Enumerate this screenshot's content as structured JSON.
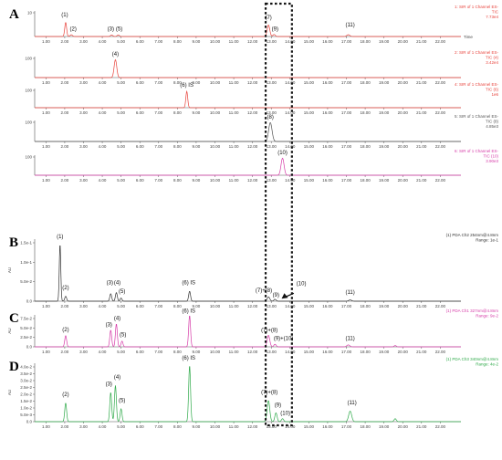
{
  "chart_data": {
    "type": "line",
    "x_axis": {
      "range": [
        0.4,
        23.1
      ],
      "tick_labels": [
        "1.00",
        "2.00",
        "3.00",
        "4.00",
        "5.00",
        "6.00",
        "7.00",
        "8.00",
        "9.00",
        "10.00",
        "11.00",
        "12.00",
        "13.00",
        "14.00",
        "15.00",
        "16.00",
        "17.00",
        "18.00",
        "19.00",
        "20.00",
        "21.00",
        "22.00"
      ],
      "suffix": "Time"
    },
    "highlight_window": [
      12.7,
      14.1
    ],
    "panels": [
      {
        "label": "A",
        "y_ticks": [
          "10"
        ],
        "ylabel": "",
        "color": "#e8433c",
        "info": [
          "1: SIR of 1 Channel ES-",
          "TIC",
          "7.73e4"
        ],
        "peaks": [
          {
            "rt": 2.05,
            "h": 0.55,
            "w": 0.05
          },
          {
            "rt": 2.35,
            "h": 0.07,
            "w": 0.06
          },
          {
            "rt": 4.5,
            "h": 0.06,
            "w": 0.06
          },
          {
            "rt": 4.85,
            "h": 0.06,
            "w": 0.06
          },
          {
            "rt": 12.85,
            "h": 0.45,
            "w": 0.07
          },
          {
            "rt": 13.15,
            "h": 0.08,
            "w": 0.06
          },
          {
            "rt": 17.1,
            "h": 0.07,
            "w": 0.08
          }
        ],
        "peak_labels": [
          {
            "text": "(1)",
            "rt": 2.0,
            "h": 0.75
          },
          {
            "text": "(2)",
            "rt": 2.45,
            "h": 0.2
          },
          {
            "text": "(3)",
            "rt": 4.45,
            "h": 0.2
          },
          {
            "text": "(5)",
            "rt": 4.9,
            "h": 0.2
          },
          {
            "text": "(7)",
            "rt": 12.85,
            "h": 0.65
          },
          {
            "text": "(9)",
            "rt": 13.2,
            "h": 0.2
          },
          {
            "text": "(11)",
            "rt": 17.2,
            "h": 0.35
          }
        ]
      },
      {
        "label": "",
        "y_ticks": [
          "100"
        ],
        "ylabel": "",
        "color": "#e8433c",
        "info": [
          "2: SIR of 1 Channel ES-",
          "TIC (4)",
          "3.42e4"
        ],
        "peaks": [
          {
            "rt": 4.7,
            "h": 0.85,
            "w": 0.07
          }
        ],
        "peak_labels": [
          {
            "text": "(4)",
            "rt": 4.7,
            "h": 1.0
          }
        ]
      },
      {
        "label": "",
        "y_ticks": [
          "100"
        ],
        "ylabel": "",
        "color": "#e8433c",
        "info": [
          "4: SIR of 1 Channel ES-",
          "TIC (6)",
          "1e6"
        ],
        "peaks": [
          {
            "rt": 8.5,
            "h": 0.85,
            "w": 0.05
          }
        ],
        "peak_labels": [
          {
            "text": "(6) IS",
            "rt": 8.5,
            "h": 1.05
          }
        ]
      },
      {
        "label": "",
        "y_ticks": [
          "100"
        ],
        "ylabel": "",
        "color": "#555555",
        "info": [
          "5: SIR of 1 Channel ES-",
          "TIC (8)",
          "4.85e3"
        ],
        "peaks": [
          {
            "rt": 12.95,
            "h": 0.9,
            "w": 0.09
          }
        ],
        "peak_labels": [
          {
            "text": "(8)",
            "rt": 12.95,
            "h": 1.05
          }
        ]
      },
      {
        "label": "",
        "y_ticks": [
          "100"
        ],
        "ylabel": "",
        "color": "#d63ca8",
        "info": [
          "6: SIR of 1 Channel ES-",
          "TIC (10)",
          "3.90e3"
        ],
        "peaks": [
          {
            "rt": 13.6,
            "h": 0.85,
            "w": 0.08
          }
        ],
        "peak_labels": [
          {
            "text": "(10)",
            "rt": 13.6,
            "h": 1.0
          }
        ]
      },
      {
        "label": "B",
        "y_ticks": [
          "1.5e-1",
          "1.0e-1",
          "5.0e-2",
          "0.0"
        ],
        "ylabel": "AU",
        "color": "#333333",
        "info": [
          "(1) PDA Ch2 254nm@4.8nm",
          "Range: 1e-1"
        ],
        "peaks": [
          {
            "rt": 1.75,
            "h": 0.92,
            "w": 0.04
          },
          {
            "rt": 2.05,
            "h": 0.08,
            "w": 0.05
          },
          {
            "rt": 4.45,
            "h": 0.12,
            "w": 0.05
          },
          {
            "rt": 4.75,
            "h": 0.14,
            "w": 0.05
          },
          {
            "rt": 5.0,
            "h": 0.05,
            "w": 0.05
          },
          {
            "rt": 8.65,
            "h": 0.16,
            "w": 0.05
          },
          {
            "rt": 12.85,
            "h": 0.07,
            "w": 0.07
          },
          {
            "rt": 13.2,
            "h": 0.03,
            "w": 0.06
          },
          {
            "rt": 17.2,
            "h": 0.02,
            "w": 0.08
          }
        ],
        "peak_labels": [
          {
            "text": "(1)",
            "rt": 1.75,
            "h": 1.0
          },
          {
            "text": "(2)",
            "rt": 2.05,
            "h": 0.18
          },
          {
            "text": "(3)",
            "rt": 4.4,
            "h": 0.26
          },
          {
            "text": "(4)",
            "rt": 4.8,
            "h": 0.26
          },
          {
            "text": "(5)",
            "rt": 5.05,
            "h": 0.12
          },
          {
            "text": "(6) IS",
            "rt": 8.6,
            "h": 0.26
          },
          {
            "text": "(7)+(8)",
            "rt": 12.6,
            "h": 0.13
          },
          {
            "text": "(9)",
            "rt": 13.25,
            "h": 0.06
          },
          {
            "text": "(10)",
            "rt": 14.6,
            "h": 0.24
          },
          {
            "text": "(11)",
            "rt": 17.2,
            "h": 0.1
          }
        ],
        "arrow": {
          "from_rt": 14.2,
          "to_rt": 13.55
        }
      },
      {
        "label": "C",
        "y_ticks": [
          "7.5e-2",
          "5.0e-2",
          "2.5e-2",
          "0.0"
        ],
        "ylabel": "AU",
        "color": "#d63ca8",
        "info": [
          "(1) PDA Ch1 327nm@4.8nm",
          "Range: 9e-2"
        ],
        "peaks": [
          {
            "rt": 2.05,
            "h": 0.35,
            "w": 0.05
          },
          {
            "rt": 4.45,
            "h": 0.52,
            "w": 0.05
          },
          {
            "rt": 4.75,
            "h": 0.72,
            "w": 0.05
          },
          {
            "rt": 5.05,
            "h": 0.18,
            "w": 0.05
          },
          {
            "rt": 8.65,
            "h": 0.98,
            "w": 0.05
          },
          {
            "rt": 12.85,
            "h": 0.36,
            "w": 0.07
          },
          {
            "rt": 13.2,
            "h": 0.08,
            "w": 0.06
          },
          {
            "rt": 17.1,
            "h": 0.06,
            "w": 0.08
          },
          {
            "rt": 19.6,
            "h": 0.04,
            "w": 0.06
          }
        ],
        "peak_labels": [
          {
            "text": "(2)",
            "rt": 2.05,
            "h": 0.46
          },
          {
            "text": "(3)",
            "rt": 4.35,
            "h": 0.62
          },
          {
            "text": "(4)",
            "rt": 4.8,
            "h": 0.82
          },
          {
            "text": "(5)",
            "rt": 5.1,
            "h": 0.3
          },
          {
            "text": "(6) IS",
            "rt": 8.6,
            "h": 1.05
          },
          {
            "text": "(7)+(8)",
            "rt": 12.9,
            "h": 0.44
          },
          {
            "text": "(9)+(10)",
            "rt": 13.65,
            "h": 0.18
          },
          {
            "text": "(11)",
            "rt": 17.2,
            "h": 0.18
          }
        ]
      },
      {
        "label": "D",
        "y_ticks": [
          "4.0e-2",
          "3.5e-2",
          "3.0e-2",
          "2.5e-2",
          "2.0e-2",
          "1.5e-2",
          "1.0e-2",
          "5.0e-3",
          "0.0"
        ],
        "ylabel": "AU",
        "color": "#2faa4a",
        "info": [
          "(1) PDA Ch3 340nm@4.8nm",
          "Range: 4e-2"
        ],
        "peaks": [
          {
            "rt": 2.05,
            "h": 0.32,
            "w": 0.05
          },
          {
            "rt": 4.45,
            "h": 0.5,
            "w": 0.05
          },
          {
            "rt": 4.7,
            "h": 0.62,
            "w": 0.05
          },
          {
            "rt": 5.0,
            "h": 0.22,
            "w": 0.05
          },
          {
            "rt": 8.65,
            "h": 0.96,
            "w": 0.05
          },
          {
            "rt": 12.85,
            "h": 0.36,
            "w": 0.07
          },
          {
            "rt": 13.25,
            "h": 0.15,
            "w": 0.06
          },
          {
            "rt": 13.6,
            "h": 0.05,
            "w": 0.06
          },
          {
            "rt": 17.2,
            "h": 0.18,
            "w": 0.08
          },
          {
            "rt": 19.6,
            "h": 0.05,
            "w": 0.06
          }
        ],
        "peak_labels": [
          {
            "text": "(2)",
            "rt": 2.05,
            "h": 0.42
          },
          {
            "text": "(3)",
            "rt": 4.35,
            "h": 0.6
          },
          {
            "text": "(4)",
            "rt": 4.8,
            "h": 0.72
          },
          {
            "text": "(5)",
            "rt": 5.05,
            "h": 0.32
          },
          {
            "text": "(6) IS",
            "rt": 8.6,
            "h": 1.05
          },
          {
            "text": "(7)+(8)",
            "rt": 12.9,
            "h": 0.46
          },
          {
            "text": "(9)",
            "rt": 13.35,
            "h": 0.24
          },
          {
            "text": "(10)",
            "rt": 13.75,
            "h": 0.1
          },
          {
            "text": "(11)",
            "rt": 17.3,
            "h": 0.28
          }
        ]
      }
    ]
  }
}
